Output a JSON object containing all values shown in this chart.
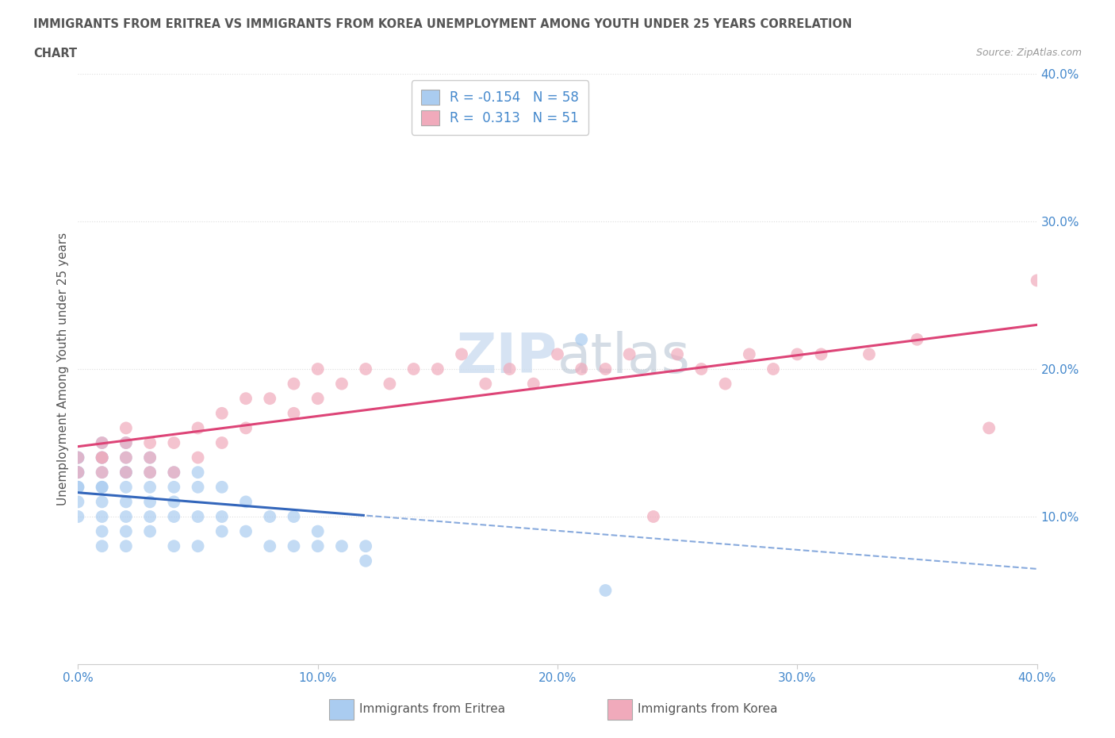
{
  "title_line1": "IMMIGRANTS FROM ERITREA VS IMMIGRANTS FROM KOREA UNEMPLOYMENT AMONG YOUTH UNDER 25 YEARS CORRELATION",
  "title_line2": "CHART",
  "source_text": "Source: ZipAtlas.com",
  "ylabel": "Unemployment Among Youth under 25 years",
  "R_eritrea": -0.154,
  "N_eritrea": 58,
  "R_korea": 0.313,
  "N_korea": 51,
  "color_eritrea": "#aaccf0",
  "color_korea": "#f0aabb",
  "trendline_eritrea_solid_color": "#3366bb",
  "trendline_eritrea_dashed_color": "#88aadd",
  "trendline_korea_color": "#dd4477",
  "watermark_color": "#ccddf0",
  "background_color": "#ffffff",
  "grid_color": "#dddddd",
  "tick_label_color": "#4488cc",
  "title_color": "#555555",
  "ylabel_color": "#555555",
  "eritrea_x": [
    0.0,
    0.0,
    0.0,
    0.0,
    0.0,
    0.0,
    0.0,
    0.0,
    0.01,
    0.01,
    0.01,
    0.01,
    0.01,
    0.01,
    0.01,
    0.01,
    0.01,
    0.01,
    0.02,
    0.02,
    0.02,
    0.02,
    0.02,
    0.02,
    0.02,
    0.02,
    0.02,
    0.03,
    0.03,
    0.03,
    0.03,
    0.03,
    0.03,
    0.04,
    0.04,
    0.04,
    0.04,
    0.04,
    0.05,
    0.05,
    0.05,
    0.05,
    0.06,
    0.06,
    0.06,
    0.07,
    0.07,
    0.08,
    0.08,
    0.09,
    0.09,
    0.1,
    0.1,
    0.11,
    0.12,
    0.12,
    0.21,
    0.22
  ],
  "eritrea_y": [
    0.14,
    0.14,
    0.13,
    0.13,
    0.12,
    0.12,
    0.11,
    0.1,
    0.15,
    0.14,
    0.14,
    0.13,
    0.12,
    0.12,
    0.11,
    0.1,
    0.09,
    0.08,
    0.15,
    0.14,
    0.13,
    0.13,
    0.12,
    0.11,
    0.1,
    0.09,
    0.08,
    0.14,
    0.13,
    0.12,
    0.11,
    0.1,
    0.09,
    0.13,
    0.12,
    0.11,
    0.1,
    0.08,
    0.13,
    0.12,
    0.1,
    0.08,
    0.12,
    0.1,
    0.09,
    0.11,
    0.09,
    0.1,
    0.08,
    0.1,
    0.08,
    0.09,
    0.08,
    0.08,
    0.08,
    0.07,
    0.22,
    0.05
  ],
  "korea_x": [
    0.0,
    0.0,
    0.01,
    0.01,
    0.01,
    0.01,
    0.02,
    0.02,
    0.02,
    0.02,
    0.03,
    0.03,
    0.03,
    0.04,
    0.04,
    0.05,
    0.05,
    0.06,
    0.06,
    0.07,
    0.07,
    0.08,
    0.09,
    0.09,
    0.1,
    0.1,
    0.11,
    0.12,
    0.13,
    0.14,
    0.15,
    0.16,
    0.17,
    0.18,
    0.19,
    0.2,
    0.21,
    0.22,
    0.23,
    0.24,
    0.25,
    0.26,
    0.27,
    0.28,
    0.29,
    0.3,
    0.31,
    0.33,
    0.35,
    0.38,
    0.4
  ],
  "korea_y": [
    0.13,
    0.14,
    0.14,
    0.15,
    0.14,
    0.13,
    0.15,
    0.16,
    0.14,
    0.13,
    0.15,
    0.14,
    0.13,
    0.15,
    0.13,
    0.16,
    0.14,
    0.17,
    0.15,
    0.18,
    0.16,
    0.18,
    0.19,
    0.17,
    0.2,
    0.18,
    0.19,
    0.2,
    0.19,
    0.2,
    0.2,
    0.21,
    0.19,
    0.2,
    0.19,
    0.21,
    0.2,
    0.2,
    0.21,
    0.1,
    0.21,
    0.2,
    0.19,
    0.21,
    0.2,
    0.21,
    0.21,
    0.21,
    0.22,
    0.16,
    0.26
  ],
  "xlim": [
    0.0,
    0.4
  ],
  "ylim": [
    0.0,
    0.4
  ],
  "xticks": [
    0.0,
    0.1,
    0.2,
    0.3,
    0.4
  ],
  "yticks": [
    0.1,
    0.2,
    0.3,
    0.4
  ],
  "legend_entry1": "R = -0.154   N = 58",
  "legend_entry2": "R =  0.313   N = 51",
  "bottom_label1": "Immigrants from Eritrea",
  "bottom_label2": "Immigrants from Korea"
}
